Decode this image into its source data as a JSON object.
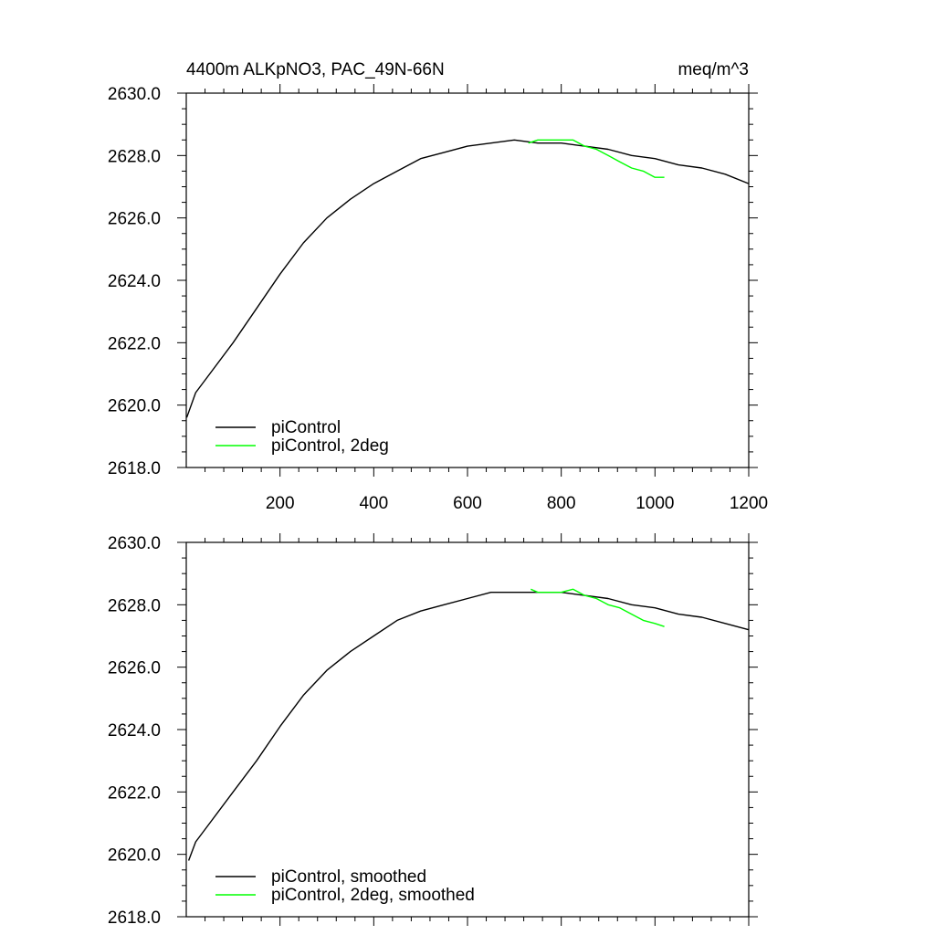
{
  "chart_data": [
    {
      "type": "line",
      "title": "4400m ALKpNO3, PAC_49N-66N",
      "units": "meq/m^3",
      "xlim": [
        0,
        1200
      ],
      "ylim": [
        2618.0,
        2630.0
      ],
      "x_ticks": [
        200,
        400,
        600,
        800,
        1000,
        1200
      ],
      "y_ticks": [
        "2618.0",
        "2620.0",
        "2622.0",
        "2624.0",
        "2626.0",
        "2628.0",
        "2630.0"
      ],
      "legend_position": "bottom-left",
      "series": [
        {
          "name": "piControl",
          "color": "#000000",
          "x": [
            1,
            20,
            50,
            100,
            150,
            200,
            250,
            300,
            350,
            400,
            450,
            500,
            550,
            600,
            650,
            700,
            750,
            800,
            850,
            900,
            950,
            1000,
            1050,
            1100,
            1150,
            1200
          ],
          "y": [
            2619.6,
            2620.4,
            2621.0,
            2622.0,
            2623.1,
            2624.2,
            2625.2,
            2626.0,
            2626.6,
            2627.1,
            2627.5,
            2627.9,
            2628.1,
            2628.3,
            2628.4,
            2628.5,
            2628.4,
            2628.4,
            2628.3,
            2628.2,
            2628.0,
            2627.9,
            2627.7,
            2627.6,
            2627.4,
            2627.1
          ]
        },
        {
          "name": "piControl, 2deg",
          "color": "#00ff00",
          "x": [
            730,
            750,
            775,
            800,
            825,
            850,
            875,
            900,
            925,
            950,
            975,
            1000,
            1020
          ],
          "y": [
            2628.4,
            2628.5,
            2628.5,
            2628.5,
            2628.5,
            2628.3,
            2628.2,
            2628.0,
            2627.8,
            2627.6,
            2627.5,
            2627.3,
            2627.3
          ]
        }
      ]
    },
    {
      "type": "line",
      "xlim": [
        0,
        1200
      ],
      "ylim": [
        2618.0,
        2630.0
      ],
      "y_ticks": [
        "2618.0",
        "2620.0",
        "2622.0",
        "2624.0",
        "2626.0",
        "2628.0",
        "2630.0"
      ],
      "legend_position": "bottom-left",
      "series": [
        {
          "name": "piControl, smoothed",
          "color": "#000000",
          "x": [
            5,
            20,
            50,
            100,
            150,
            200,
            250,
            300,
            350,
            400,
            450,
            500,
            550,
            600,
            650,
            700,
            750,
            800,
            850,
            900,
            950,
            1000,
            1050,
            1100,
            1150,
            1200
          ],
          "y": [
            2619.8,
            2620.4,
            2621.0,
            2622.0,
            2623.0,
            2624.1,
            2625.1,
            2625.9,
            2626.5,
            2627.0,
            2627.5,
            2627.8,
            2628.0,
            2628.2,
            2628.4,
            2628.4,
            2628.4,
            2628.4,
            2628.3,
            2628.2,
            2628.0,
            2627.9,
            2627.7,
            2627.6,
            2627.4,
            2627.2
          ]
        },
        {
          "name": "piControl, 2deg, smoothed",
          "color": "#00ff00",
          "x": [
            735,
            750,
            775,
            800,
            825,
            850,
            875,
            900,
            925,
            950,
            975,
            1000,
            1020
          ],
          "y": [
            2628.5,
            2628.4,
            2628.4,
            2628.4,
            2628.5,
            2628.3,
            2628.2,
            2628.0,
            2627.9,
            2627.7,
            2627.5,
            2627.4,
            2627.3
          ]
        }
      ]
    }
  ]
}
